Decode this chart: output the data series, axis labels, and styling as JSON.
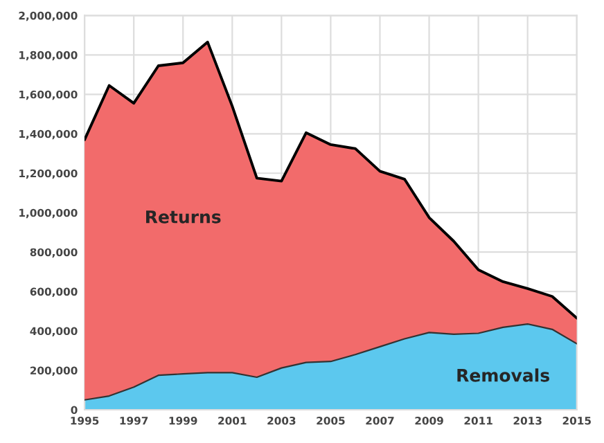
{
  "chart_data": {
    "type": "area",
    "stacked": true,
    "x": [
      1995,
      1996,
      1997,
      1998,
      1999,
      2000,
      2001,
      2002,
      2003,
      2004,
      2005,
      2006,
      2007,
      2008,
      2009,
      2010,
      2011,
      2012,
      2013,
      2014,
      2015
    ],
    "series": [
      {
        "name": "Removals",
        "color": "#5cc8ee",
        "values": [
          50000,
          70000,
          115000,
          175000,
          182000,
          188000,
          188000,
          165000,
          212000,
          240000,
          245000,
          280000,
          320000,
          360000,
          392000,
          383000,
          388000,
          418000,
          435000,
          408000,
          335000
        ]
      },
      {
        "name": "Returns",
        "color": "#f26b6b",
        "values": [
          1320000,
          1575000,
          1440000,
          1570000,
          1578000,
          1677000,
          1352000,
          1010000,
          948000,
          1165000,
          1100000,
          1045000,
          890000,
          810000,
          583000,
          472000,
          322000,
          232000,
          180000,
          167000,
          130000
        ]
      }
    ],
    "xlim": [
      1995,
      2015
    ],
    "xticks": [
      1995,
      1997,
      1999,
      2001,
      2003,
      2005,
      2007,
      2009,
      2011,
      2013,
      2015
    ],
    "ylim": [
      0,
      2000000
    ],
    "yticks": [
      {
        "value": 0,
        "label": "0"
      },
      {
        "value": 200000,
        "label": "200,000"
      },
      {
        "value": 400000,
        "label": "400,000"
      },
      {
        "value": 600000,
        "label": "600,000"
      },
      {
        "value": 800000,
        "label": "800,000"
      },
      {
        "value": 1000000,
        "label": "1,000,000"
      },
      {
        "value": 1200000,
        "label": "1,200,000"
      },
      {
        "value": 1400000,
        "label": "1,400,000"
      },
      {
        "value": 1600000,
        "label": "1,600,000"
      },
      {
        "value": 1800000,
        "label": "1,800,000"
      },
      {
        "value": 2000000,
        "label": "2,000,000"
      }
    ],
    "grid": true
  }
}
